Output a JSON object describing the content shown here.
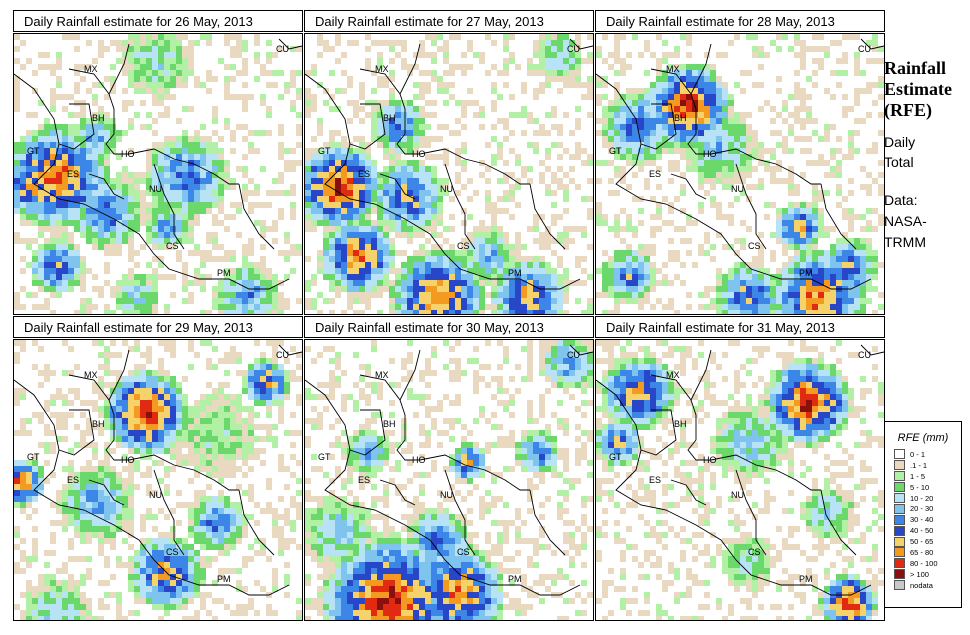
{
  "panels": [
    {
      "title": "Daily Rainfall estimate for  26 May, 2013",
      "date": "26 May, 2013"
    },
    {
      "title": "Daily Rainfall estimate for  27 May, 2013",
      "date": "27 May, 2013"
    },
    {
      "title": "Daily Rainfall estimate for  28 May, 2013",
      "date": "28 May, 2013"
    },
    {
      "title": "Daily Rainfall estimate for  29 May, 2013",
      "date": "29 May, 2013"
    },
    {
      "title": "Daily Rainfall estimate for  30 May, 2013",
      "date": "30 May, 2013"
    },
    {
      "title": "Daily Rainfall estimate for  31 May, 2013",
      "date": "31 May, 2013"
    }
  ],
  "country_labels": [
    "MX",
    "BH",
    "GT",
    "HO",
    "ES",
    "NU",
    "CS",
    "PM",
    "CU"
  ],
  "side": {
    "title_line1": "Rainfall",
    "title_line2": "Estimate",
    "title_line3": "(RFE)",
    "sub1_line1": "Daily",
    "sub1_line2": "Total",
    "sub2_line1": "Data:",
    "sub2_line2": "NASA-",
    "sub2_line3": "TRMM"
  },
  "legend": {
    "title": "RFE (mm)",
    "items": [
      {
        "label": "0 - 1",
        "color": "#ffffff"
      },
      {
        "label": ".1 - 1",
        "color": "#e8d9c0"
      },
      {
        "label": "1 - 5",
        "color": "#b2f0a6"
      },
      {
        "label": "5 - 10",
        "color": "#6ad86a"
      },
      {
        "label": "10 - 20",
        "color": "#b8e2f5"
      },
      {
        "label": "20 - 30",
        "color": "#7fc4ee"
      },
      {
        "label": "30 - 40",
        "color": "#3c86e8"
      },
      {
        "label": "40 - 50",
        "color": "#2846c8"
      },
      {
        "label": "50 - 65",
        "color": "#f5d36a"
      },
      {
        "label": "65 - 80",
        "color": "#f59a20"
      },
      {
        "label": "80 - 100",
        "color": "#e02a12"
      },
      {
        "label": "> 100",
        "color": "#8a1010"
      },
      {
        "label": "nodata",
        "color": "#c8c8c8"
      }
    ]
  }
}
